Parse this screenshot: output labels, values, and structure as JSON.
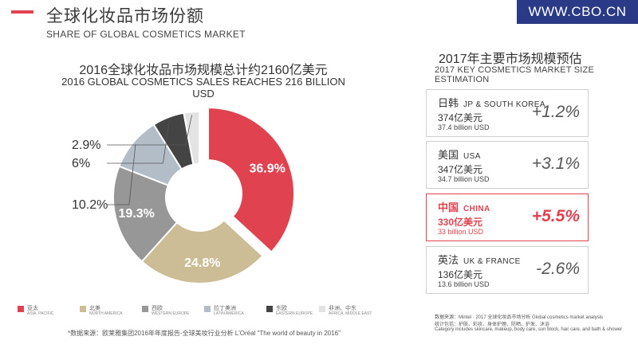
{
  "header": {
    "title_cn": "全球化妆品市场份额",
    "title_en": "SHARE OF GLOBAL COSMETICS MARKET",
    "brand": "WWW.CBO.CN",
    "accent_color": "#e0434f",
    "brand_color": "#2a3a86"
  },
  "chart_data": {
    "type": "pie",
    "title": "2016全球化妆品市场规模总计约2160亿美元",
    "subtitle": "2016 GLOBAL COSMETICS SALES REACHES 216 BILLION USD",
    "slices": [
      {
        "name": "亚太",
        "name_en": "ASIA, PACIFIC",
        "value": 36.9,
        "label": "36.9%",
        "color": "#e0434f"
      },
      {
        "name": "北美",
        "name_en": "NORTH AMERICA",
        "value": 24.8,
        "label": "24.8%",
        "color": "#cdbd96"
      },
      {
        "name": "西欧",
        "name_en": "WESTERN EUROPE",
        "value": 19.3,
        "label": "19.3%",
        "color": "#979797"
      },
      {
        "name": "拉丁美洲",
        "name_en": "LATIN AMERICA",
        "value": 10.2,
        "label": "10.2%",
        "color": "#b3bdc8"
      },
      {
        "name": "东欧",
        "name_en": "EASTERN EUROPE",
        "value": 6.0,
        "label": "6%",
        "color": "#444444"
      },
      {
        "name": "非洲、中东",
        "name_en": "AFRICA, MIDDLE EAST",
        "value": 2.9,
        "label": "2.9%",
        "color": "#e3e3e3"
      }
    ],
    "legend_position": "bottom"
  },
  "forecast": {
    "title_cn": "2017年主要市场规模预估",
    "title_en": "2017 KEY COSMETICS MARKET SIZE ESTIMATION",
    "cards": [
      {
        "name_cn": "日韩",
        "name_en": "JP & SOUTH KOREA",
        "value": "374亿美元",
        "sub": "37.4 billion USD",
        "growth": "+1.2%",
        "highlight": false
      },
      {
        "name_cn": "美国",
        "name_en": "USA",
        "value": "347亿美元",
        "sub": "34.7 billion USD",
        "growth": "+3.1%",
        "highlight": false
      },
      {
        "name_cn": "中国",
        "name_en": "CHINA",
        "value": "330亿美元",
        "sub": "33 billion USD",
        "growth": "+5.5%",
        "highlight": true
      },
      {
        "name_cn": "英法",
        "name_en": "UK & FRANCE",
        "value": "136亿美元",
        "sub": "13.6 billion USD",
        "growth": "-2.6%",
        "highlight": false
      }
    ],
    "source_lines": [
      "数据来源：Mintel · 2017 全球化妆品市场分析 Global cosmetics market analysis",
      "统计包括：护肤、彩妆、身体护理、防晒、护发、沐浴",
      "Category includes skincare, makeup, body care, sun block, hair care, and bath & shower"
    ]
  },
  "footnote": "*数据来源：欧莱雅集团2016年年度报告-全球美妆行业分析 L'Oréal \"The world of beauty in 2016\""
}
